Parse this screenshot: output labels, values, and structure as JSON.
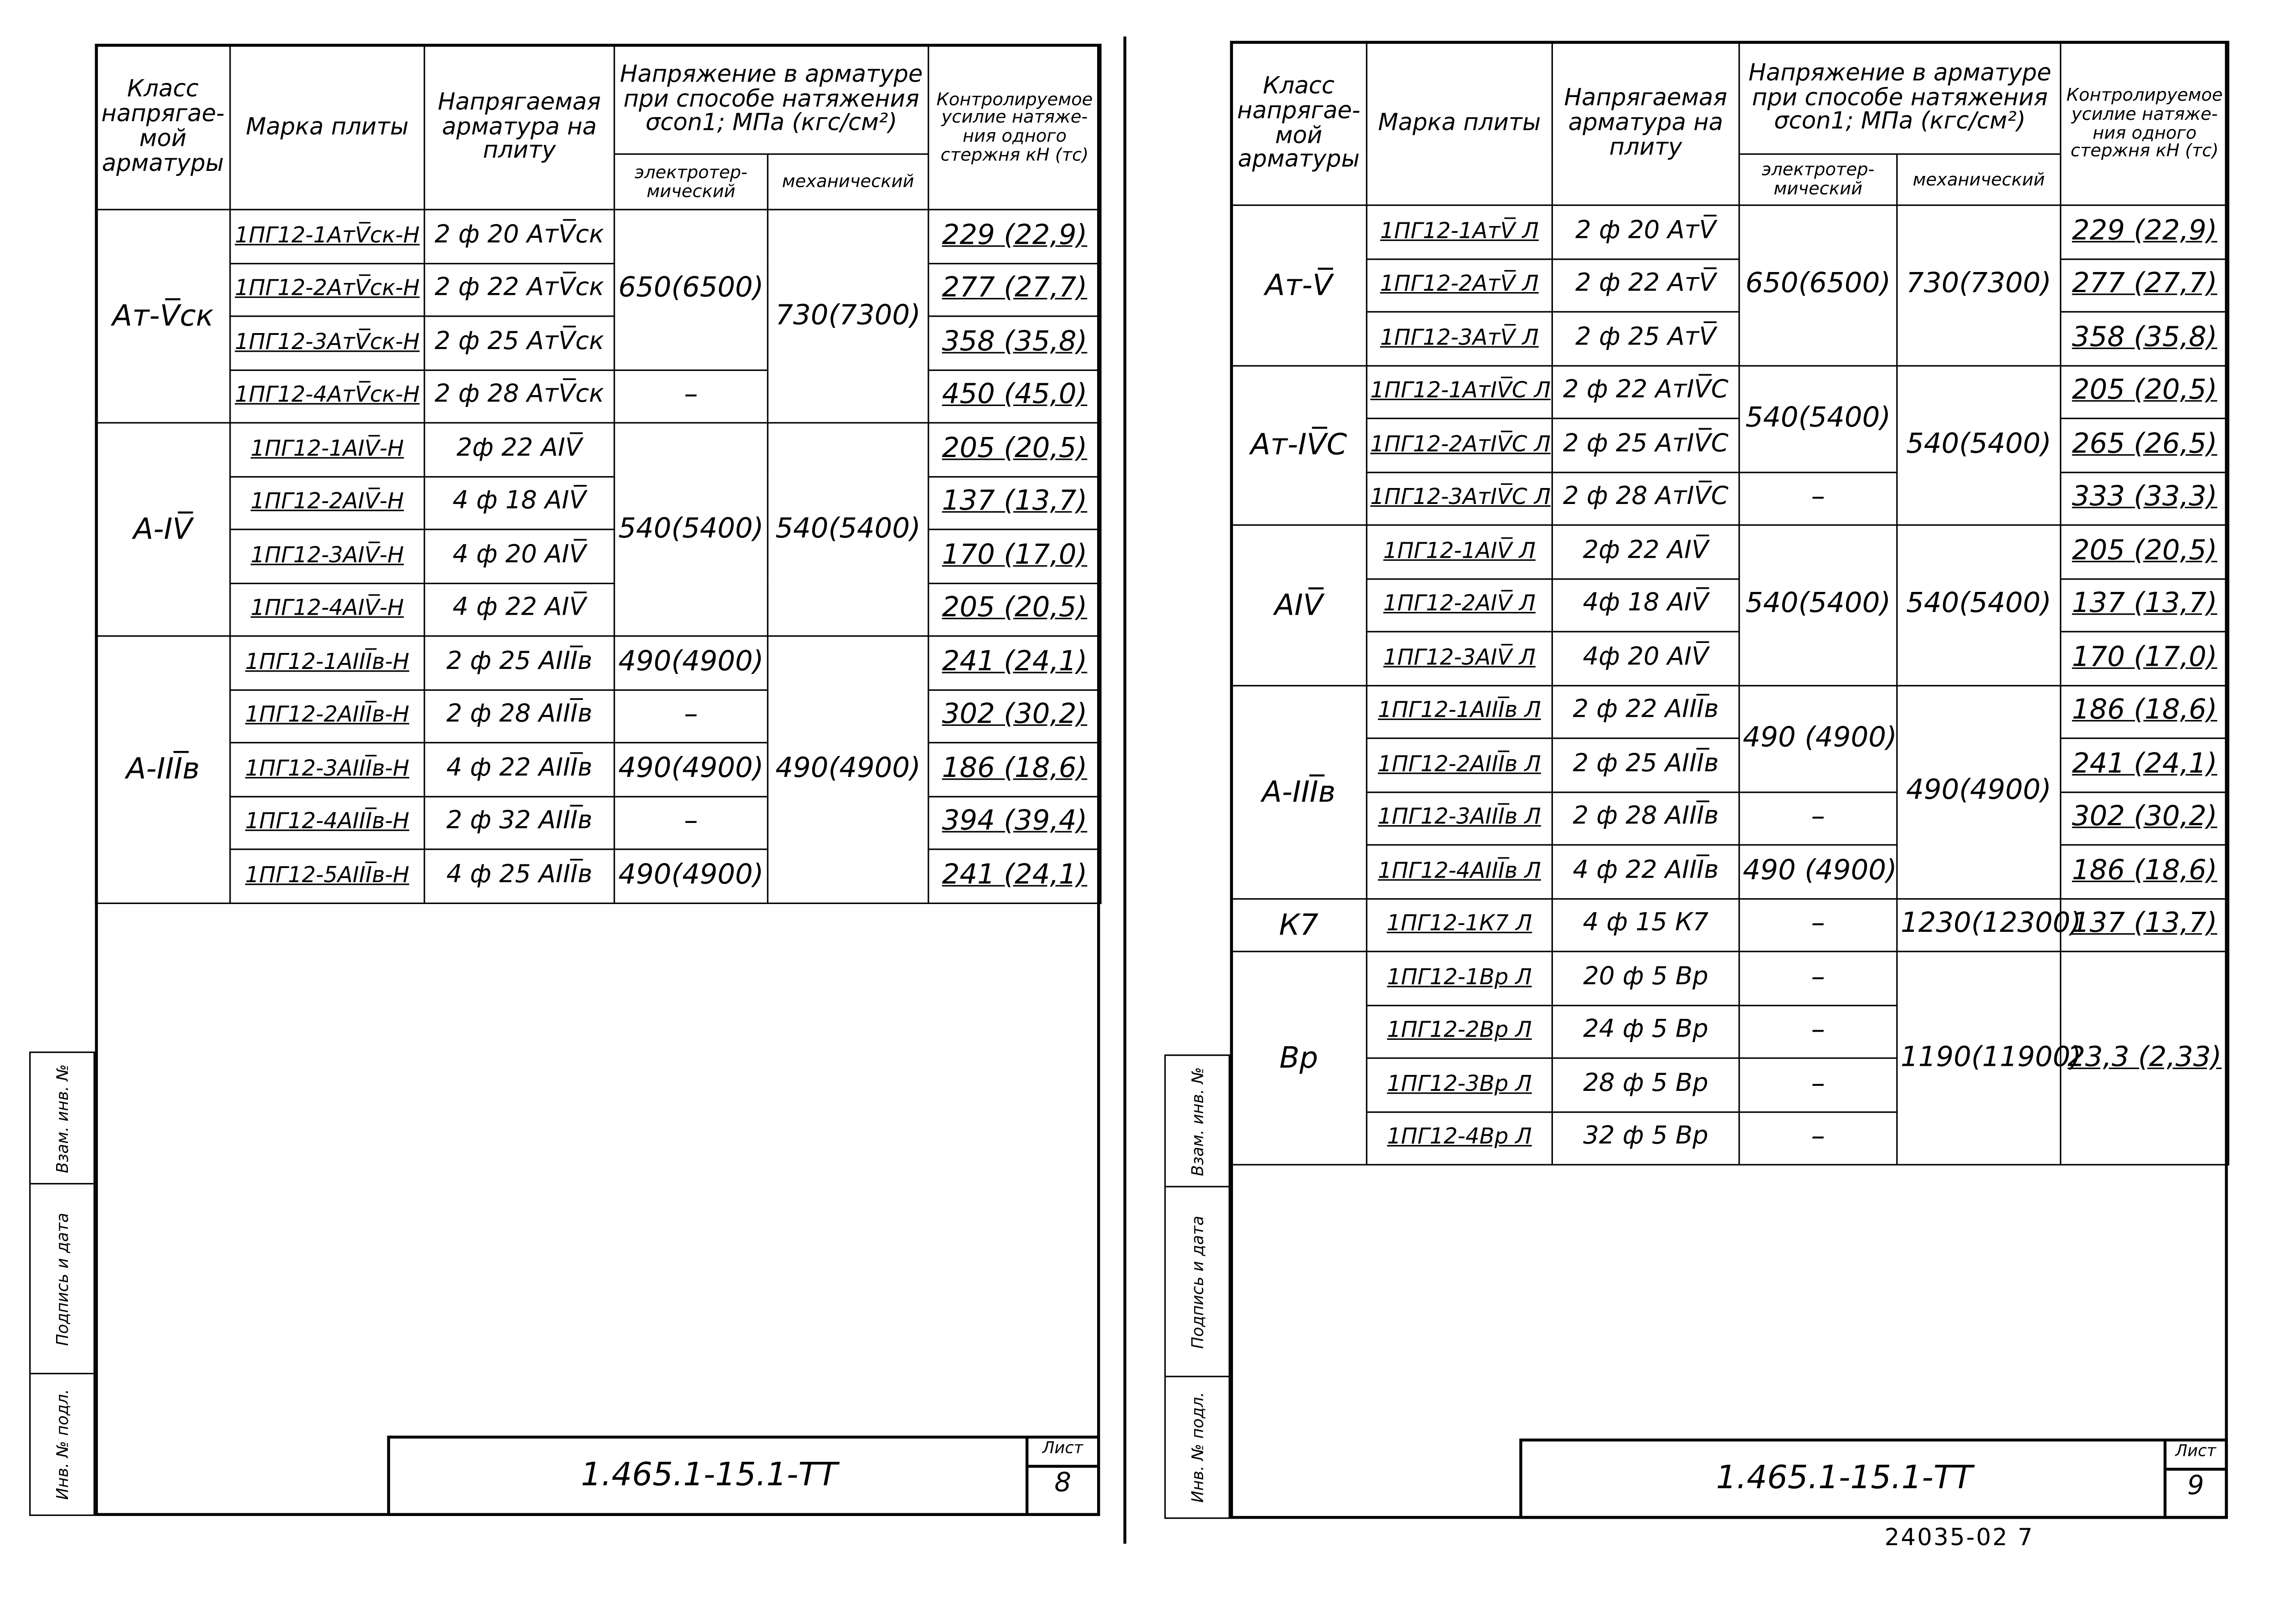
{
  "headers": {
    "class": "Класс напрягае- мой арматуры",
    "mark": "Марка плиты",
    "rebar": "Напрягаемая арматура на плиту",
    "stress": "Напряжение в арматуре при способе натяжения σcon1; МПа (кгс/см²)",
    "electro": "электротер- мический",
    "mech": "механический",
    "force": "Контролируемое усилие натяже- ния одного стержня кН (тс)"
  },
  "left": {
    "sheet_code": "1.465.1-15.1-ТТ",
    "sheet_label": "Лист",
    "sheet_no": "8",
    "groups": [
      {
        "cls": "Ат-V̅ск",
        "rows": [
          {
            "mark": "1ПГ12-1АтV̅ск-Н",
            "rebar": "2 ф 20 АтV̅ск"
          },
          {
            "mark": "1ПГ12-2АтV̅ск-Н",
            "rebar": "2 ф 22 АтV̅ск"
          },
          {
            "mark": "1ПГ12-3АтV̅ск-Н",
            "rebar": "2 ф 25 АтV̅ск"
          },
          {
            "mark": "1ПГ12-4АтV̅ск-Н",
            "rebar": "2 ф 28 АтV̅ск"
          }
        ],
        "electro": [
          {
            "text": "650(6500)",
            "span": 3
          },
          {
            "text": "–",
            "span": 1
          }
        ],
        "mech": [
          {
            "text": "730(7300)",
            "span": 4
          }
        ],
        "force": [
          {
            "text": "229 (22,9)",
            "span": 1
          },
          {
            "text": "277 (27,7)",
            "span": 1
          },
          {
            "text": "358 (35,8)",
            "span": 1
          },
          {
            "text": "450 (45,0)",
            "span": 1
          }
        ]
      },
      {
        "cls": "А-IV̅",
        "rows": [
          {
            "mark": "1ПГ12-1АIV̅-Н",
            "rebar": "2ф 22 АIV̅"
          },
          {
            "mark": "1ПГ12-2АIV̅-Н",
            "rebar": "4 ф 18 АIV̅"
          },
          {
            "mark": "1ПГ12-3АIV̅-Н",
            "rebar": "4 ф 20 АIV̅"
          },
          {
            "mark": "1ПГ12-4АIV̅-Н",
            "rebar": "4 ф 22 АIV̅"
          }
        ],
        "electro": [
          {
            "text": "540(5400)",
            "span": 4
          }
        ],
        "mech": [
          {
            "text": "540(5400)",
            "span": 4
          }
        ],
        "force": [
          {
            "text": "205 (20,5)",
            "span": 1
          },
          {
            "text": "137 (13,7)",
            "span": 1
          },
          {
            "text": "170 (17,0)",
            "span": 1
          },
          {
            "text": "205 (20,5)",
            "span": 1
          }
        ]
      },
      {
        "cls": "А-III̅в",
        "rows": [
          {
            "mark": "1ПГ12-1АIII̅в-Н",
            "rebar": "2 ф 25 АIII̅в"
          },
          {
            "mark": "1ПГ12-2АIII̅в-Н",
            "rebar": "2 ф 28 АIII̅в"
          },
          {
            "mark": "1ПГ12-3АIII̅в-Н",
            "rebar": "4 ф 22 АIII̅в"
          },
          {
            "mark": "1ПГ12-4АIII̅в-Н",
            "rebar": "2 ф 32 АIII̅в"
          },
          {
            "mark": "1ПГ12-5АIII̅в-Н",
            "rebar": "4 ф 25 АIII̅в"
          }
        ],
        "electro": [
          {
            "text": "490(4900)",
            "span": 1
          },
          {
            "text": "–",
            "span": 1
          },
          {
            "text": "490(4900)",
            "span": 1
          },
          {
            "text": "–",
            "span": 1
          },
          {
            "text": "490(4900)",
            "span": 1
          }
        ],
        "mech": [
          {
            "text": "490(4900)",
            "span": 5
          }
        ],
        "force": [
          {
            "text": "241 (24,1)",
            "span": 1
          },
          {
            "text": "302 (30,2)",
            "span": 1
          },
          {
            "text": "186 (18,6)",
            "span": 1
          },
          {
            "text": "394 (39,4)",
            "span": 1
          },
          {
            "text": "241 (24,1)",
            "span": 1
          }
        ]
      }
    ]
  },
  "right": {
    "sheet_code": "1.465.1-15.1-ТТ",
    "sheet_label": "Лист",
    "sheet_no": "9",
    "groups": [
      {
        "cls": "Ат-V̅",
        "rows": [
          {
            "mark": "1ПГ12-1АтV̅ Л",
            "rebar": "2 ф 20 АтV̅"
          },
          {
            "mark": "1ПГ12-2АтV̅ Л",
            "rebar": "2 ф 22 АтV̅"
          },
          {
            "mark": "1ПГ12-3АтV̅ Л",
            "rebar": "2 ф 25 АтV̅"
          }
        ],
        "electro": [
          {
            "text": "650(6500)",
            "span": 3
          }
        ],
        "mech": [
          {
            "text": "730(7300)",
            "span": 3
          }
        ],
        "force": [
          {
            "text": "229 (22,9)",
            "span": 1
          },
          {
            "text": "277 (27,7)",
            "span": 1
          },
          {
            "text": "358 (35,8)",
            "span": 1
          }
        ]
      },
      {
        "cls": "Ат-IV̅С",
        "rows": [
          {
            "mark": "1ПГ12-1АтIV̅С Л",
            "rebar": "2 ф 22 АтIV̅С"
          },
          {
            "mark": "1ПГ12-2АтIV̅С Л",
            "rebar": "2 ф 25 АтIV̅С"
          },
          {
            "mark": "1ПГ12-3АтIV̅С Л",
            "rebar": "2 ф 28 АтIV̅С"
          }
        ],
        "electro": [
          {
            "text": "540(5400)",
            "span": 2
          },
          {
            "text": "–",
            "span": 1
          }
        ],
        "mech": [
          {
            "text": "540(5400)",
            "span": 3
          }
        ],
        "force": [
          {
            "text": "205 (20,5)",
            "span": 1
          },
          {
            "text": "265 (26,5)",
            "span": 1
          },
          {
            "text": "333 (33,3)",
            "span": 1
          }
        ]
      },
      {
        "cls": "АIV̅",
        "rows": [
          {
            "mark": "1ПГ12-1АIV̅ Л",
            "rebar": "2ф 22 АIV̅"
          },
          {
            "mark": "1ПГ12-2АIV̅ Л",
            "rebar": "4ф 18 АIV̅"
          },
          {
            "mark": "1ПГ12-3АIV̅ Л",
            "rebar": "4ф 20 АIV̅"
          }
        ],
        "electro": [
          {
            "text": "540(5400)",
            "span": 3
          }
        ],
        "mech": [
          {
            "text": "540(5400)",
            "span": 3
          }
        ],
        "force": [
          {
            "text": "205 (20,5)",
            "span": 1
          },
          {
            "text": "137 (13,7)",
            "span": 1
          },
          {
            "text": "170 (17,0)",
            "span": 1
          }
        ]
      },
      {
        "cls": "А-III̅в",
        "rows": [
          {
            "mark": "1ПГ12-1АIII̅в Л",
            "rebar": "2 ф 22 АIII̅в"
          },
          {
            "mark": "1ПГ12-2АIII̅в Л",
            "rebar": "2 ф 25 АIII̅в"
          },
          {
            "mark": "1ПГ12-3АIII̅в Л",
            "rebar": "2 ф 28 АIII̅в"
          },
          {
            "mark": "1ПГ12-4АIII̅в Л",
            "rebar": "4 ф 22 АIII̅в"
          }
        ],
        "electro": [
          {
            "text": "490 (4900)",
            "span": 2
          },
          {
            "text": "–",
            "span": 1
          },
          {
            "text": "490 (4900)",
            "span": 1
          }
        ],
        "mech": [
          {
            "text": "490(4900)",
            "span": 4
          }
        ],
        "force": [
          {
            "text": "186 (18,6)",
            "span": 1
          },
          {
            "text": "241 (24,1)",
            "span": 1
          },
          {
            "text": "302 (30,2)",
            "span": 1
          },
          {
            "text": "186 (18,6)",
            "span": 1
          }
        ]
      },
      {
        "cls": "К7",
        "rows": [
          {
            "mark": "1ПГ12-1К7 Л",
            "rebar": "4 ф 15 К7"
          }
        ],
        "electro": [
          {
            "text": "–",
            "span": 1
          }
        ],
        "mech": [
          {
            "text": "1230(12300)",
            "span": 1
          }
        ],
        "force": [
          {
            "text": "137 (13,7)",
            "span": 1
          }
        ]
      },
      {
        "cls": "Вр",
        "rows": [
          {
            "mark": "1ПГ12-1Вр Л",
            "rebar": "20 ф 5 Вр"
          },
          {
            "mark": "1ПГ12-2Вр Л",
            "rebar": "24 ф 5 Вр"
          },
          {
            "mark": "1ПГ12-3Вр Л",
            "rebar": "28 ф 5 Вр"
          },
          {
            "mark": "1ПГ12-4Вр Л",
            "rebar": "32 ф 5 Вр"
          }
        ],
        "electro": [
          {
            "text": "–",
            "span": 1
          },
          {
            "text": "–",
            "span": 1
          },
          {
            "text": "–",
            "span": 1
          },
          {
            "text": "–",
            "span": 1
          }
        ],
        "mech": [
          {
            "text": "1190(11900)",
            "span": 4
          }
        ],
        "force": [
          {
            "text": "23,3 (2,33)",
            "span": 4
          }
        ]
      }
    ]
  },
  "stamp": {
    "inv": "Инв. № подл.",
    "sign": "Подпись и дата",
    "replace": "Взам. инв. №"
  },
  "footer": "24035-02   7"
}
